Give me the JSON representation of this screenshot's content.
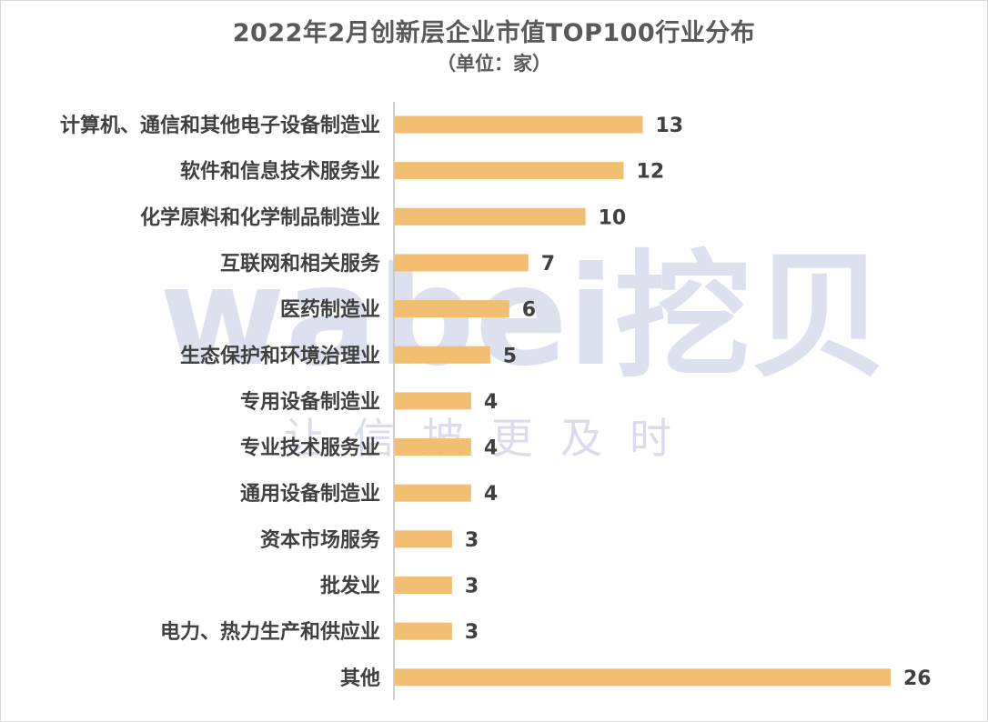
{
  "chart_data": {
    "type": "bar",
    "orientation": "horizontal",
    "title": "2022年2月创新层企业市值TOP100行业分布",
    "subtitle": "（单位：家）",
    "categories": [
      "计算机、通信和其他电子设备制造业",
      "软件和信息技术服务业",
      "化学原料和化学制品制造业",
      "互联网和相关服务",
      "医药制造业",
      "生态保护和环境治理业",
      "专用设备制造业",
      "专业技术服务业",
      "通用设备制造业",
      "资本市场服务",
      "批发业",
      "电力、热力生产和供应业",
      "其他"
    ],
    "values": [
      13,
      12,
      10,
      7,
      6,
      5,
      4,
      4,
      4,
      3,
      3,
      3,
      26
    ],
    "xlim": [
      0,
      26
    ],
    "grid": false,
    "legend": "none",
    "bar_color": "#F2BE72",
    "axis_color": "#BFBFBF"
  },
  "watermark": {
    "brand": "wabei挖贝",
    "slogan": "让信披更及时",
    "color": "#B4BBDC"
  }
}
